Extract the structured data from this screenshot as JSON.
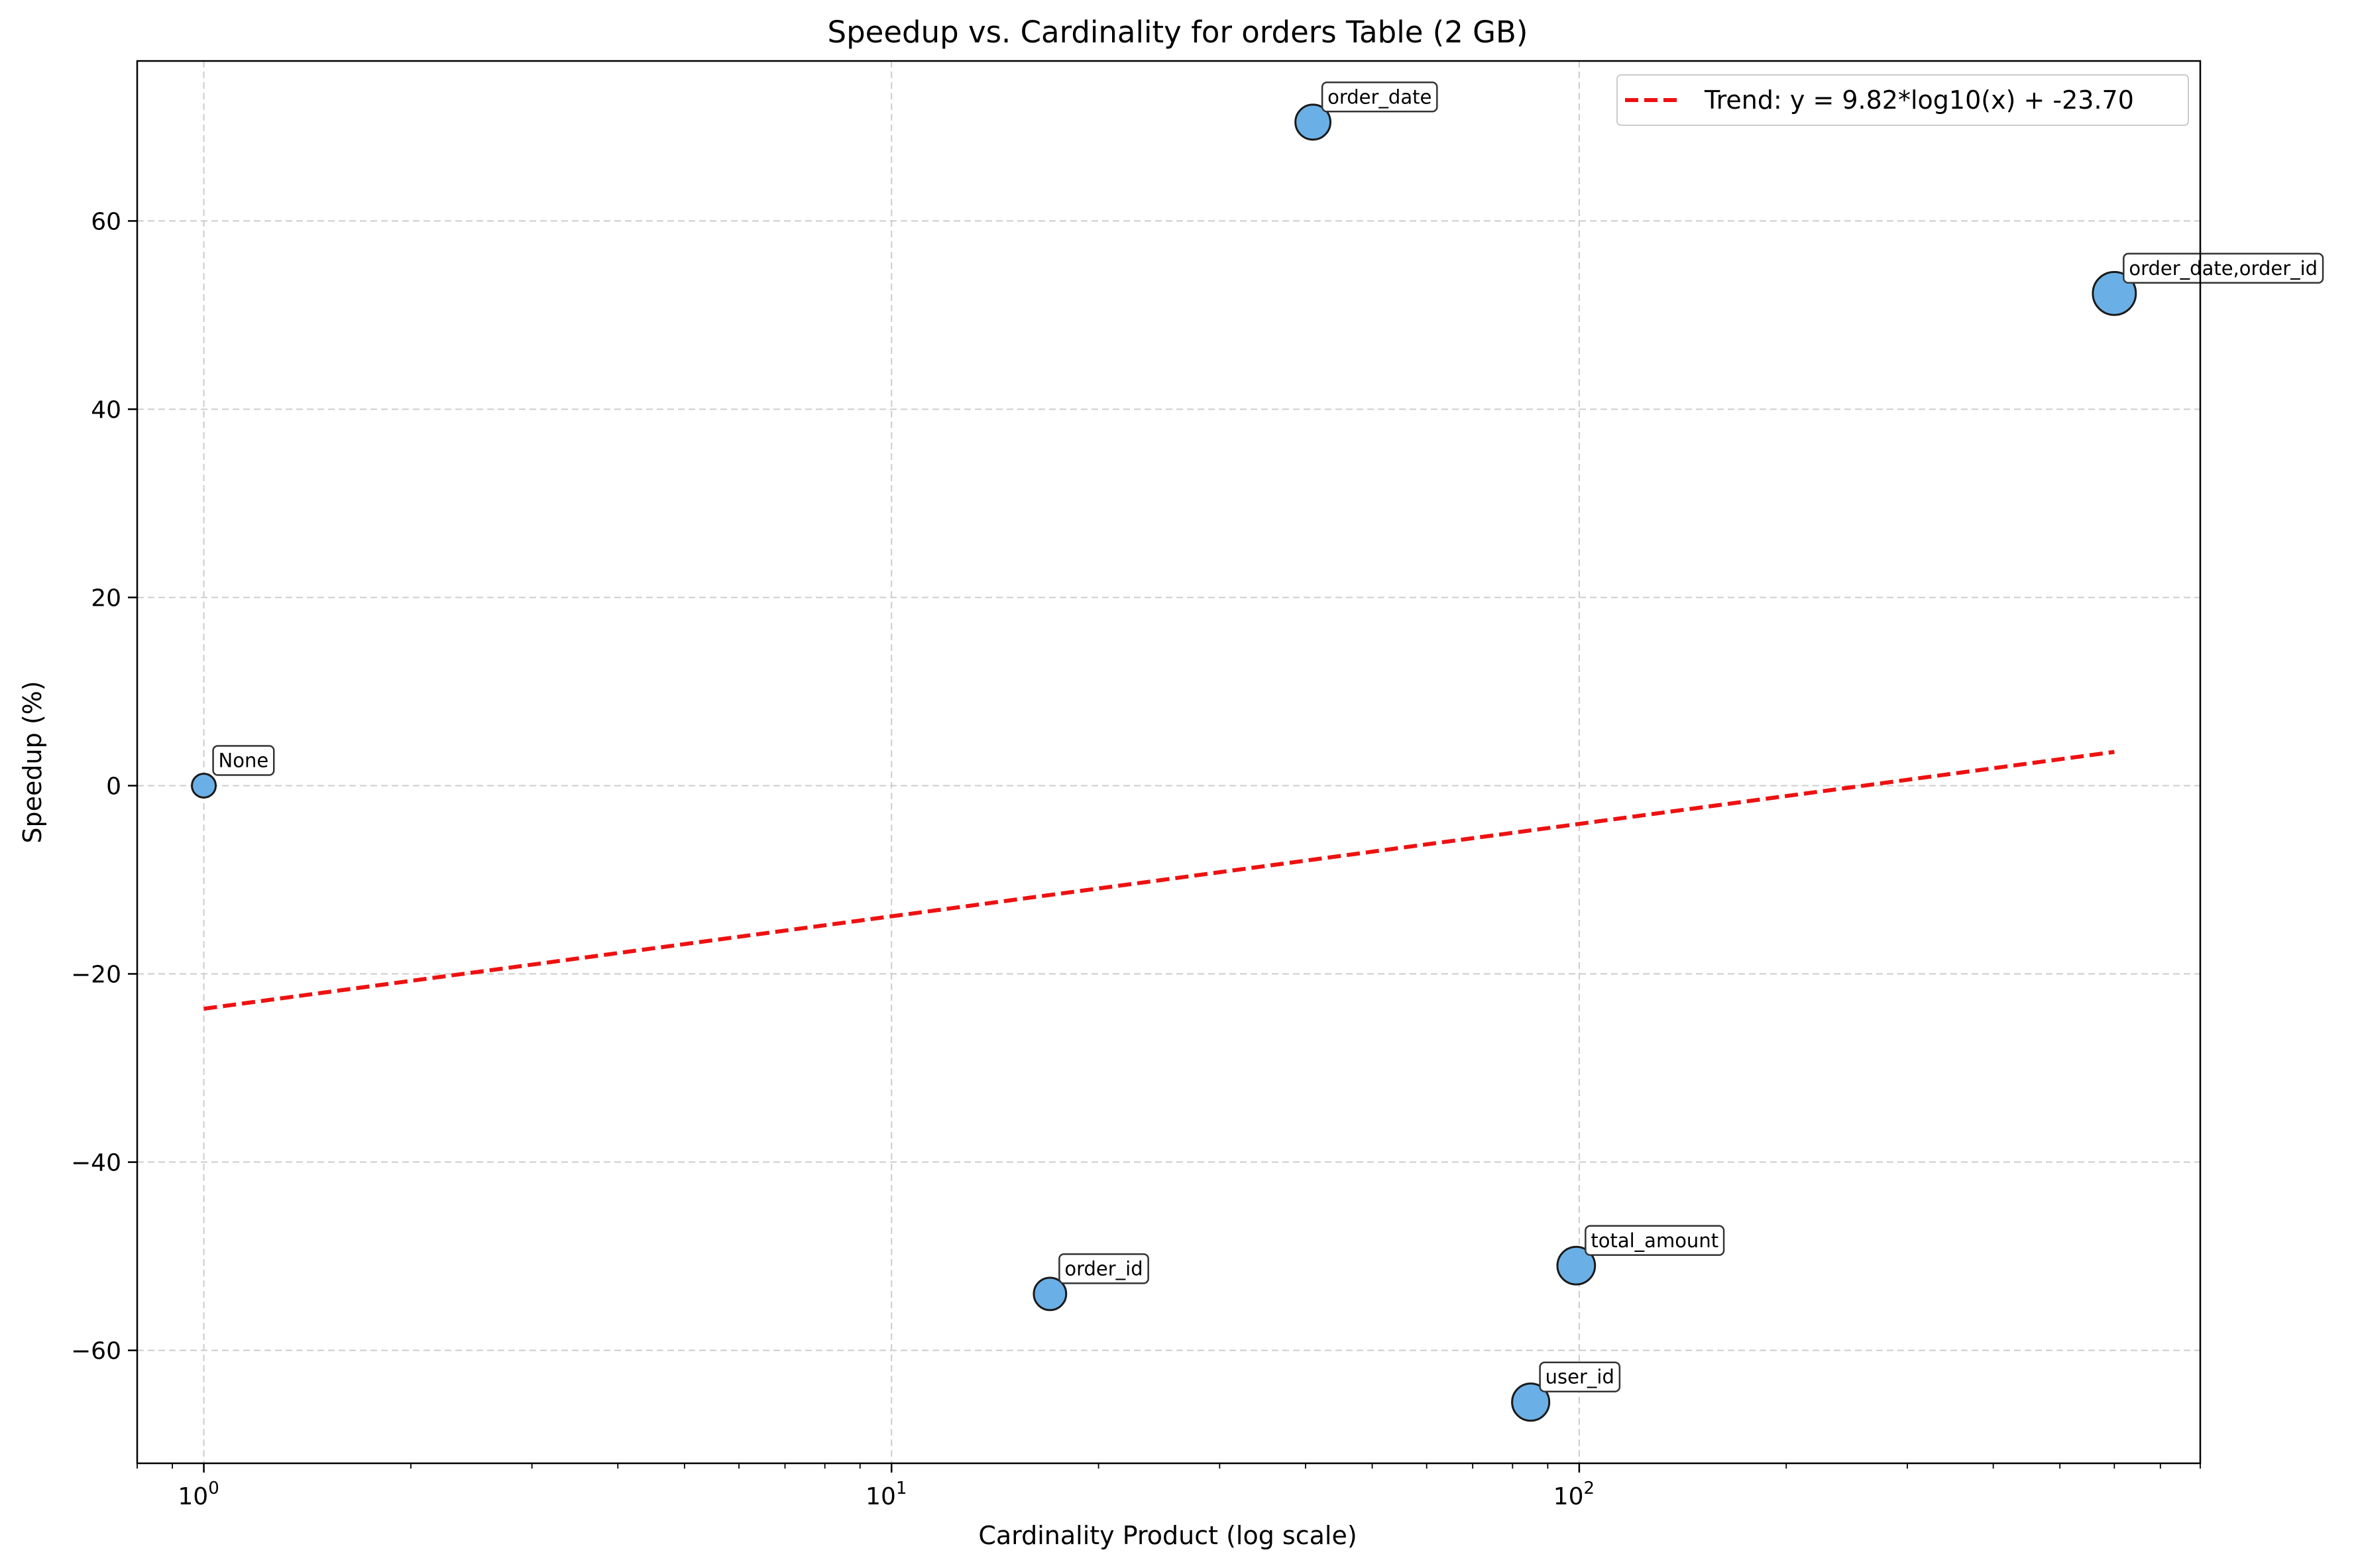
{
  "colors": {
    "point_fill": "#6ab0e6",
    "point_edge": "#1a1a1a",
    "trend": "#ee1111",
    "grid": "#cccccc",
    "axis": "#000000"
  },
  "chart_data": {
    "type": "scatter",
    "title": "Speedup vs. Cardinality for orders Table (2 GB)",
    "xlabel": "Cardinality Product (log scale)",
    "ylabel": "Speedup (%)",
    "xscale": "log",
    "xlim": [
      0.8,
      800
    ],
    "ylim": [
      -72,
      77
    ],
    "x_ticks": [
      {
        "value": 1,
        "base": "10",
        "exp": "0"
      },
      {
        "value": 10,
        "base": "10",
        "exp": "1"
      },
      {
        "value": 100,
        "base": "10",
        "exp": "2"
      }
    ],
    "y_ticks": [
      {
        "value": 60,
        "label": "60"
      },
      {
        "value": 40,
        "label": "40"
      },
      {
        "value": 20,
        "label": "20"
      },
      {
        "value": 0,
        "label": "0"
      },
      {
        "value": -20,
        "label": "−20"
      },
      {
        "value": -40,
        "label": "−40"
      },
      {
        "value": -60,
        "label": "−60"
      }
    ],
    "grid": true,
    "points": [
      {
        "label": "None",
        "x": 1,
        "y": 0,
        "size": 1
      },
      {
        "label": "order_id",
        "x": 17,
        "y": -54,
        "size": 17
      },
      {
        "label": "order_date",
        "x": 41,
        "y": 70.5,
        "size": 41
      },
      {
        "label": "user_id",
        "x": 85,
        "y": -65.5,
        "size": 85
      },
      {
        "label": "total_amount",
        "x": 99,
        "y": -51,
        "size": 99
      },
      {
        "label": "order_date,order_id",
        "x": 600,
        "y": 52.3,
        "size": 600
      }
    ],
    "trend": {
      "slope": 9.82,
      "intercept": -23.7,
      "x_range": [
        1,
        600
      ],
      "legend_label": "Trend: y = 9.82*log10(x) + -23.70",
      "legend_position": "top-right"
    }
  }
}
